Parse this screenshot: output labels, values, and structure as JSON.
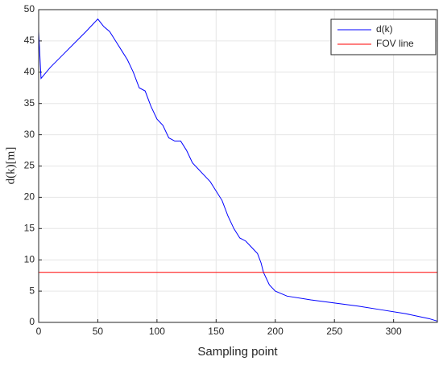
{
  "chart_data": {
    "type": "line",
    "xlabel": "Sampling point",
    "ylabel": "d(k)[m]",
    "series": [
      {
        "name": "d(k)",
        "color": "#0000ff",
        "x": [
          0,
          2,
          10,
          20,
          30,
          40,
          50,
          55,
          60,
          65,
          70,
          75,
          80,
          85,
          90,
          95,
          100,
          105,
          110,
          115,
          120,
          125,
          130,
          135,
          140,
          145,
          150,
          155,
          160,
          165,
          170,
          175,
          180,
          185,
          188,
          190,
          195,
          200,
          210,
          230,
          250,
          270,
          290,
          310,
          330,
          337
        ],
        "values": [
          46.5,
          39,
          40.8,
          42.7,
          44.6,
          46.5,
          48.5,
          47.3,
          46.5,
          45,
          43.5,
          42,
          40,
          37.5,
          37,
          34.5,
          32.5,
          31.5,
          29.5,
          29,
          29,
          27.5,
          25.5,
          24.5,
          23.5,
          22.5,
          21,
          19.5,
          17,
          15,
          13.5,
          13,
          12,
          11,
          9.5,
          8,
          6,
          5,
          4.2,
          3.6,
          3.1,
          2.6,
          2,
          1.4,
          0.6,
          0.2
        ]
      },
      {
        "name": "FOV line",
        "color": "#ff0000",
        "x": [
          0,
          337
        ],
        "values": [
          8,
          8
        ]
      }
    ],
    "xlim": [
      0,
      337
    ],
    "xticks": [
      0,
      50,
      100,
      150,
      200,
      250,
      300
    ],
    "ylim": [
      0,
      50
    ],
    "yticks": [
      0,
      5,
      10,
      15,
      20,
      25,
      30,
      35,
      40,
      45,
      50
    ],
    "grid": true,
    "legend": "top-right"
  }
}
